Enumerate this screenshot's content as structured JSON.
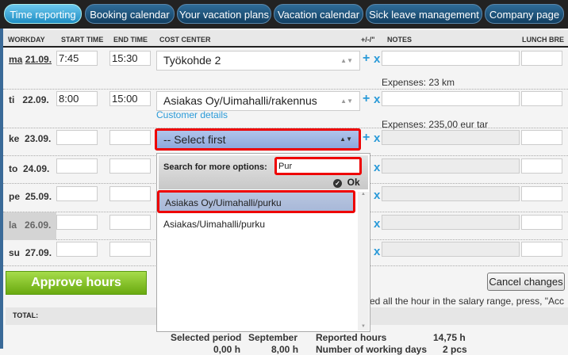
{
  "nav": {
    "tabs": [
      {
        "label": "Time reporting",
        "active": true
      },
      {
        "label": "Booking calendar"
      },
      {
        "label": "Your vacation plans"
      },
      {
        "label": "Vacation calendar"
      },
      {
        "label": "Sick leave management"
      },
      {
        "label": "Company page"
      }
    ]
  },
  "table": {
    "headers": {
      "workday": "WORKDAY",
      "start": "START TIME",
      "end": "END TIME",
      "cost": "COST CENTER",
      "pm": "+/-/\"",
      "notes": "NOTES",
      "lunch": "LUNCH BRE"
    },
    "rows": [
      {
        "dow": "ma",
        "date": "21.09.",
        "start": "7:45",
        "end": "15:30",
        "cost": "Työkohde 2",
        "expenses": "Expenses: 23 km"
      },
      {
        "dow": "ti",
        "date": "22.09.",
        "start": "8:00",
        "end": "15:00",
        "cost": "Asiakas Oy/Uimahalli/rakennus",
        "link": "Customer details",
        "expenses": "Expenses: 235,00 eur tar"
      },
      {
        "dow": "ke",
        "date": "23.09.",
        "start": "",
        "end": "",
        "cost": "-- Select first"
      },
      {
        "dow": "to",
        "date": "24.09."
      },
      {
        "dow": "pe",
        "date": "25.09."
      },
      {
        "dow": "la",
        "date": "26.09."
      },
      {
        "dow": "su",
        "date": "27.09."
      }
    ]
  },
  "dropdown": {
    "search_label": "Search for more options:",
    "search_value": "Pur",
    "ok": "Ok",
    "options": [
      "Asiakas Oy/Uimahalli/purku",
      "Asiakas/Uimahalli/purku"
    ]
  },
  "approve": "Approve hours",
  "cancel": "Cancel changes",
  "info": "ed all the hour in the salary range, press, \"Acc",
  "total": "TOTAL:",
  "summary": {
    "period_label": "Selected period",
    "period": "September",
    "reported_label": "Reported hours",
    "reported": "14,75 h",
    "v1": "0,00 h",
    "v2": "8,00 h",
    "days_label": "Number of working days",
    "days": "2 pcs"
  }
}
